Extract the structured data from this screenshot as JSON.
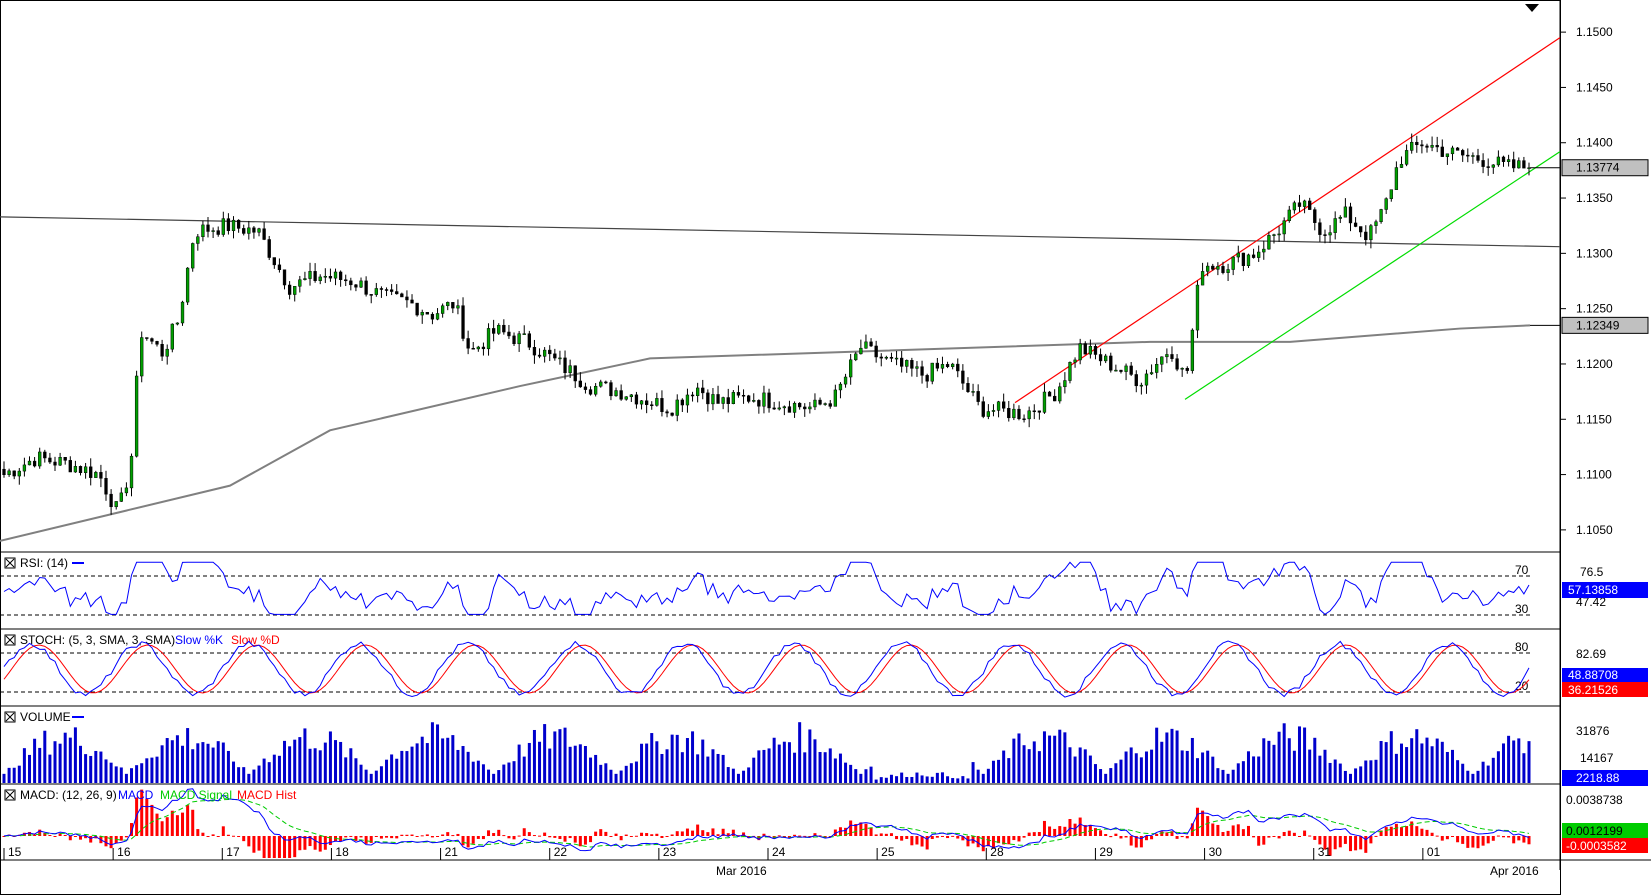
{
  "chart_data": {
    "type": "candlestick",
    "main": {
      "y_ticks": [
        "1.1500",
        "1.1450",
        "1.1400",
        "1.1350",
        "1.1300",
        "1.1250",
        "1.1200",
        "1.1150",
        "1.1100",
        "1.1050"
      ],
      "ylim": [
        1.103,
        1.152
      ],
      "last_price_label": "1.13774",
      "last_price": 1.13774,
      "sma_label": "1.12349",
      "sma_value": 1.12349
    },
    "rsi": {
      "title": "RSI: (14)",
      "levels": [
        "70",
        "30"
      ],
      "scale_labels": [
        "76.5",
        "47.42"
      ],
      "current_label": "57.13858",
      "current": 57.14
    },
    "stoch": {
      "title": "STOCH: (5, 3, SMA, 3, SMA)",
      "series": [
        {
          "name": "Slow %K",
          "color": "#0000ff"
        },
        {
          "name": "Slow %D",
          "color": "#ff0000"
        }
      ],
      "levels": [
        "80",
        "20"
      ],
      "scale_labels": [
        "82.69"
      ],
      "current_k_label": "48.88708",
      "current_d_label": "36.21526"
    },
    "volume": {
      "title": "VOLUME",
      "scale_labels": [
        "31876",
        "14167"
      ],
      "current_label": "2218.88"
    },
    "macd": {
      "title": "MACD: (12, 26, 9)",
      "series": [
        {
          "name": "MACD",
          "color": "#0000ff"
        },
        {
          "name": "MACD Signal",
          "color": "#00cc00"
        },
        {
          "name": "MACD Hist",
          "color": "#ff0000"
        }
      ],
      "scale_labels": [
        "0.0038738"
      ],
      "current_macd_label": "0.0012199",
      "current_hist_label": "-0.0003582"
    },
    "x_axis": {
      "day_labels": [
        "15",
        "16",
        "17",
        "18",
        "21",
        "22",
        "23",
        "24",
        "25",
        "28",
        "29",
        "30",
        "31",
        "01"
      ],
      "month_labels": [
        "Mar 2016",
        "Apr 2016"
      ]
    },
    "colors": {
      "up_candle": "#00a000",
      "down_candle": "#000000",
      "channel_upper": "#ff0000",
      "channel_lower": "#00dd00",
      "trendline": "#444444",
      "sma": "#808080",
      "volume": "#0000cc"
    }
  }
}
